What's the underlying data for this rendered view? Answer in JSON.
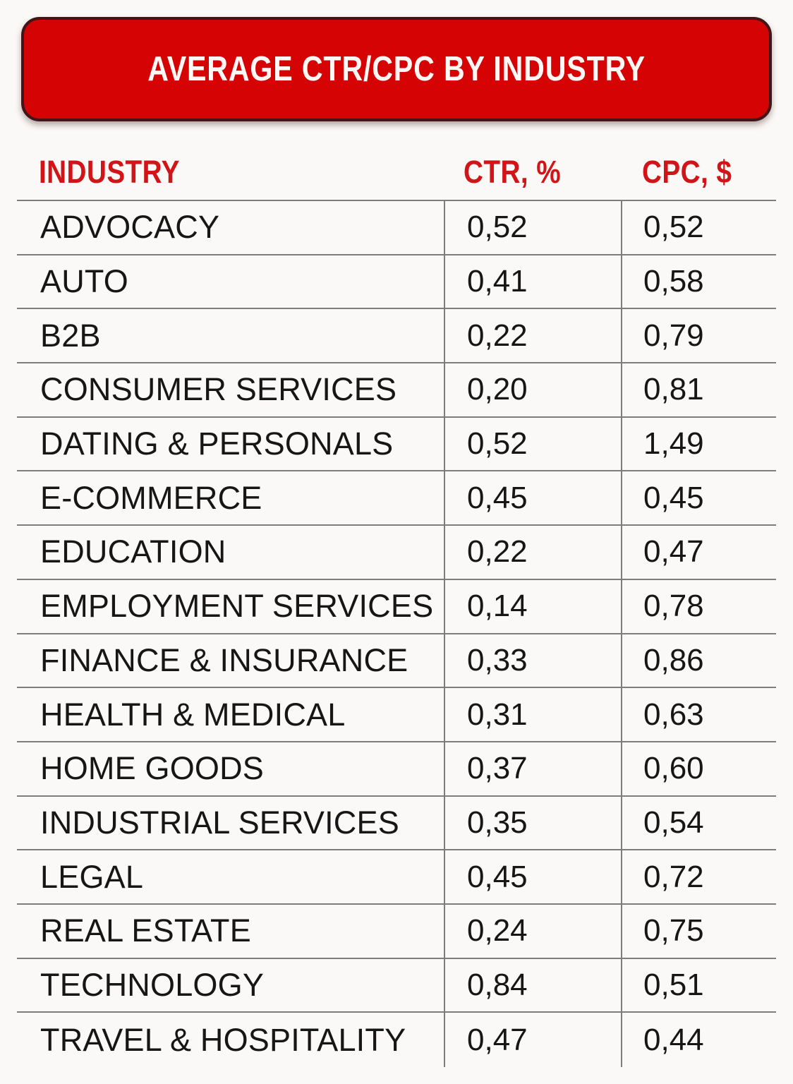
{
  "chart_data": {
    "type": "table",
    "title": "AVERAGE CTR/CPC BY INDUSTRY",
    "columns": [
      "INDUSTRY",
      "CTR, %",
      "CPC, $"
    ],
    "rows": [
      [
        "ADVOCACY",
        "0,52",
        "0,52"
      ],
      [
        "AUTO",
        "0,41",
        "0,58"
      ],
      [
        "B2B",
        "0,22",
        "0,79"
      ],
      [
        "CONSUMER SERVICES",
        "0,20",
        "0,81"
      ],
      [
        "DATING & PERSONALS",
        "0,52",
        "1,49"
      ],
      [
        "E-COMMERCE",
        "0,45",
        "0,45"
      ],
      [
        "EDUCATION",
        "0,22",
        "0,47"
      ],
      [
        "EMPLOYMENT SERVICES",
        "0,14",
        "0,78"
      ],
      [
        "FINANCE & INSURANCE",
        "0,33",
        "0,86"
      ],
      [
        "HEALTH & MEDICAL",
        "0,31",
        "0,63"
      ],
      [
        "HOME GOODS",
        "0,37",
        "0,60"
      ],
      [
        "INDUSTRIAL SERVICES",
        "0,35",
        "0,54"
      ],
      [
        "LEGAL",
        "0,45",
        "0,72"
      ],
      [
        "REAL ESTATE",
        "0,24",
        "0,75"
      ],
      [
        "TECHNOLOGY",
        "0,84",
        "0,51"
      ],
      [
        "TRAVEL & HOSPITALITY",
        "0,47",
        "0,44"
      ]
    ],
    "decimal_separator": ",",
    "layout": {
      "grid": "on",
      "header_position": "top"
    }
  },
  "colors": {
    "banner_background": "#d50303",
    "banner_border": "#421517",
    "banner_text": "#fdf8f6",
    "column_header_text": "#d11418",
    "grid_line": "#7d7d7d",
    "row_text": "#161616",
    "page_background": "#fbf9f7"
  }
}
